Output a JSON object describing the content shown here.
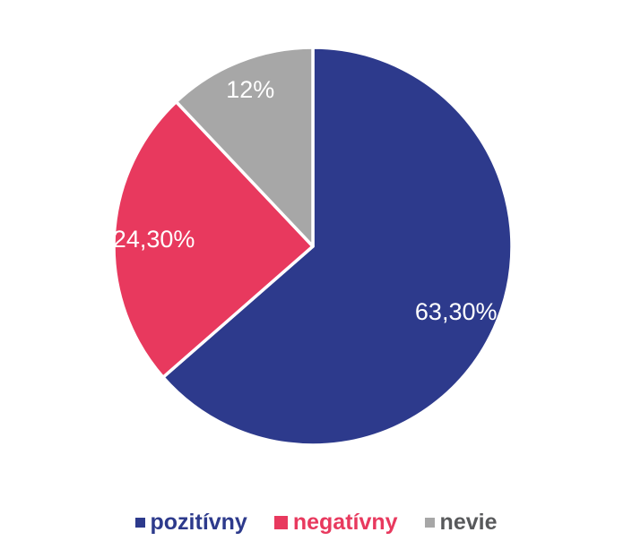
{
  "background_color": "#ffffff",
  "chart_data": {
    "type": "pie",
    "title": "",
    "direction": "clockwise",
    "start_angle_deg": 0,
    "separator_color": "#ffffff",
    "data_label_color": "#ffffff",
    "legend_position": "bottom",
    "slices": [
      {
        "id": "pozitivny",
        "label": "pozitívny",
        "value": 63.3,
        "display": "63,30%",
        "color": "#2d3a8c",
        "legend_color": "#2d3a8c"
      },
      {
        "id": "negativny",
        "label": "negatívny",
        "value": 24.3,
        "display": "24,30%",
        "color": "#e8395e",
        "legend_color": "#e8395e"
      },
      {
        "id": "nevie",
        "label": "nevie",
        "value": 12.0,
        "display": "12%",
        "color": "#a7a7a7",
        "legend_color": "#58595b"
      }
    ]
  }
}
